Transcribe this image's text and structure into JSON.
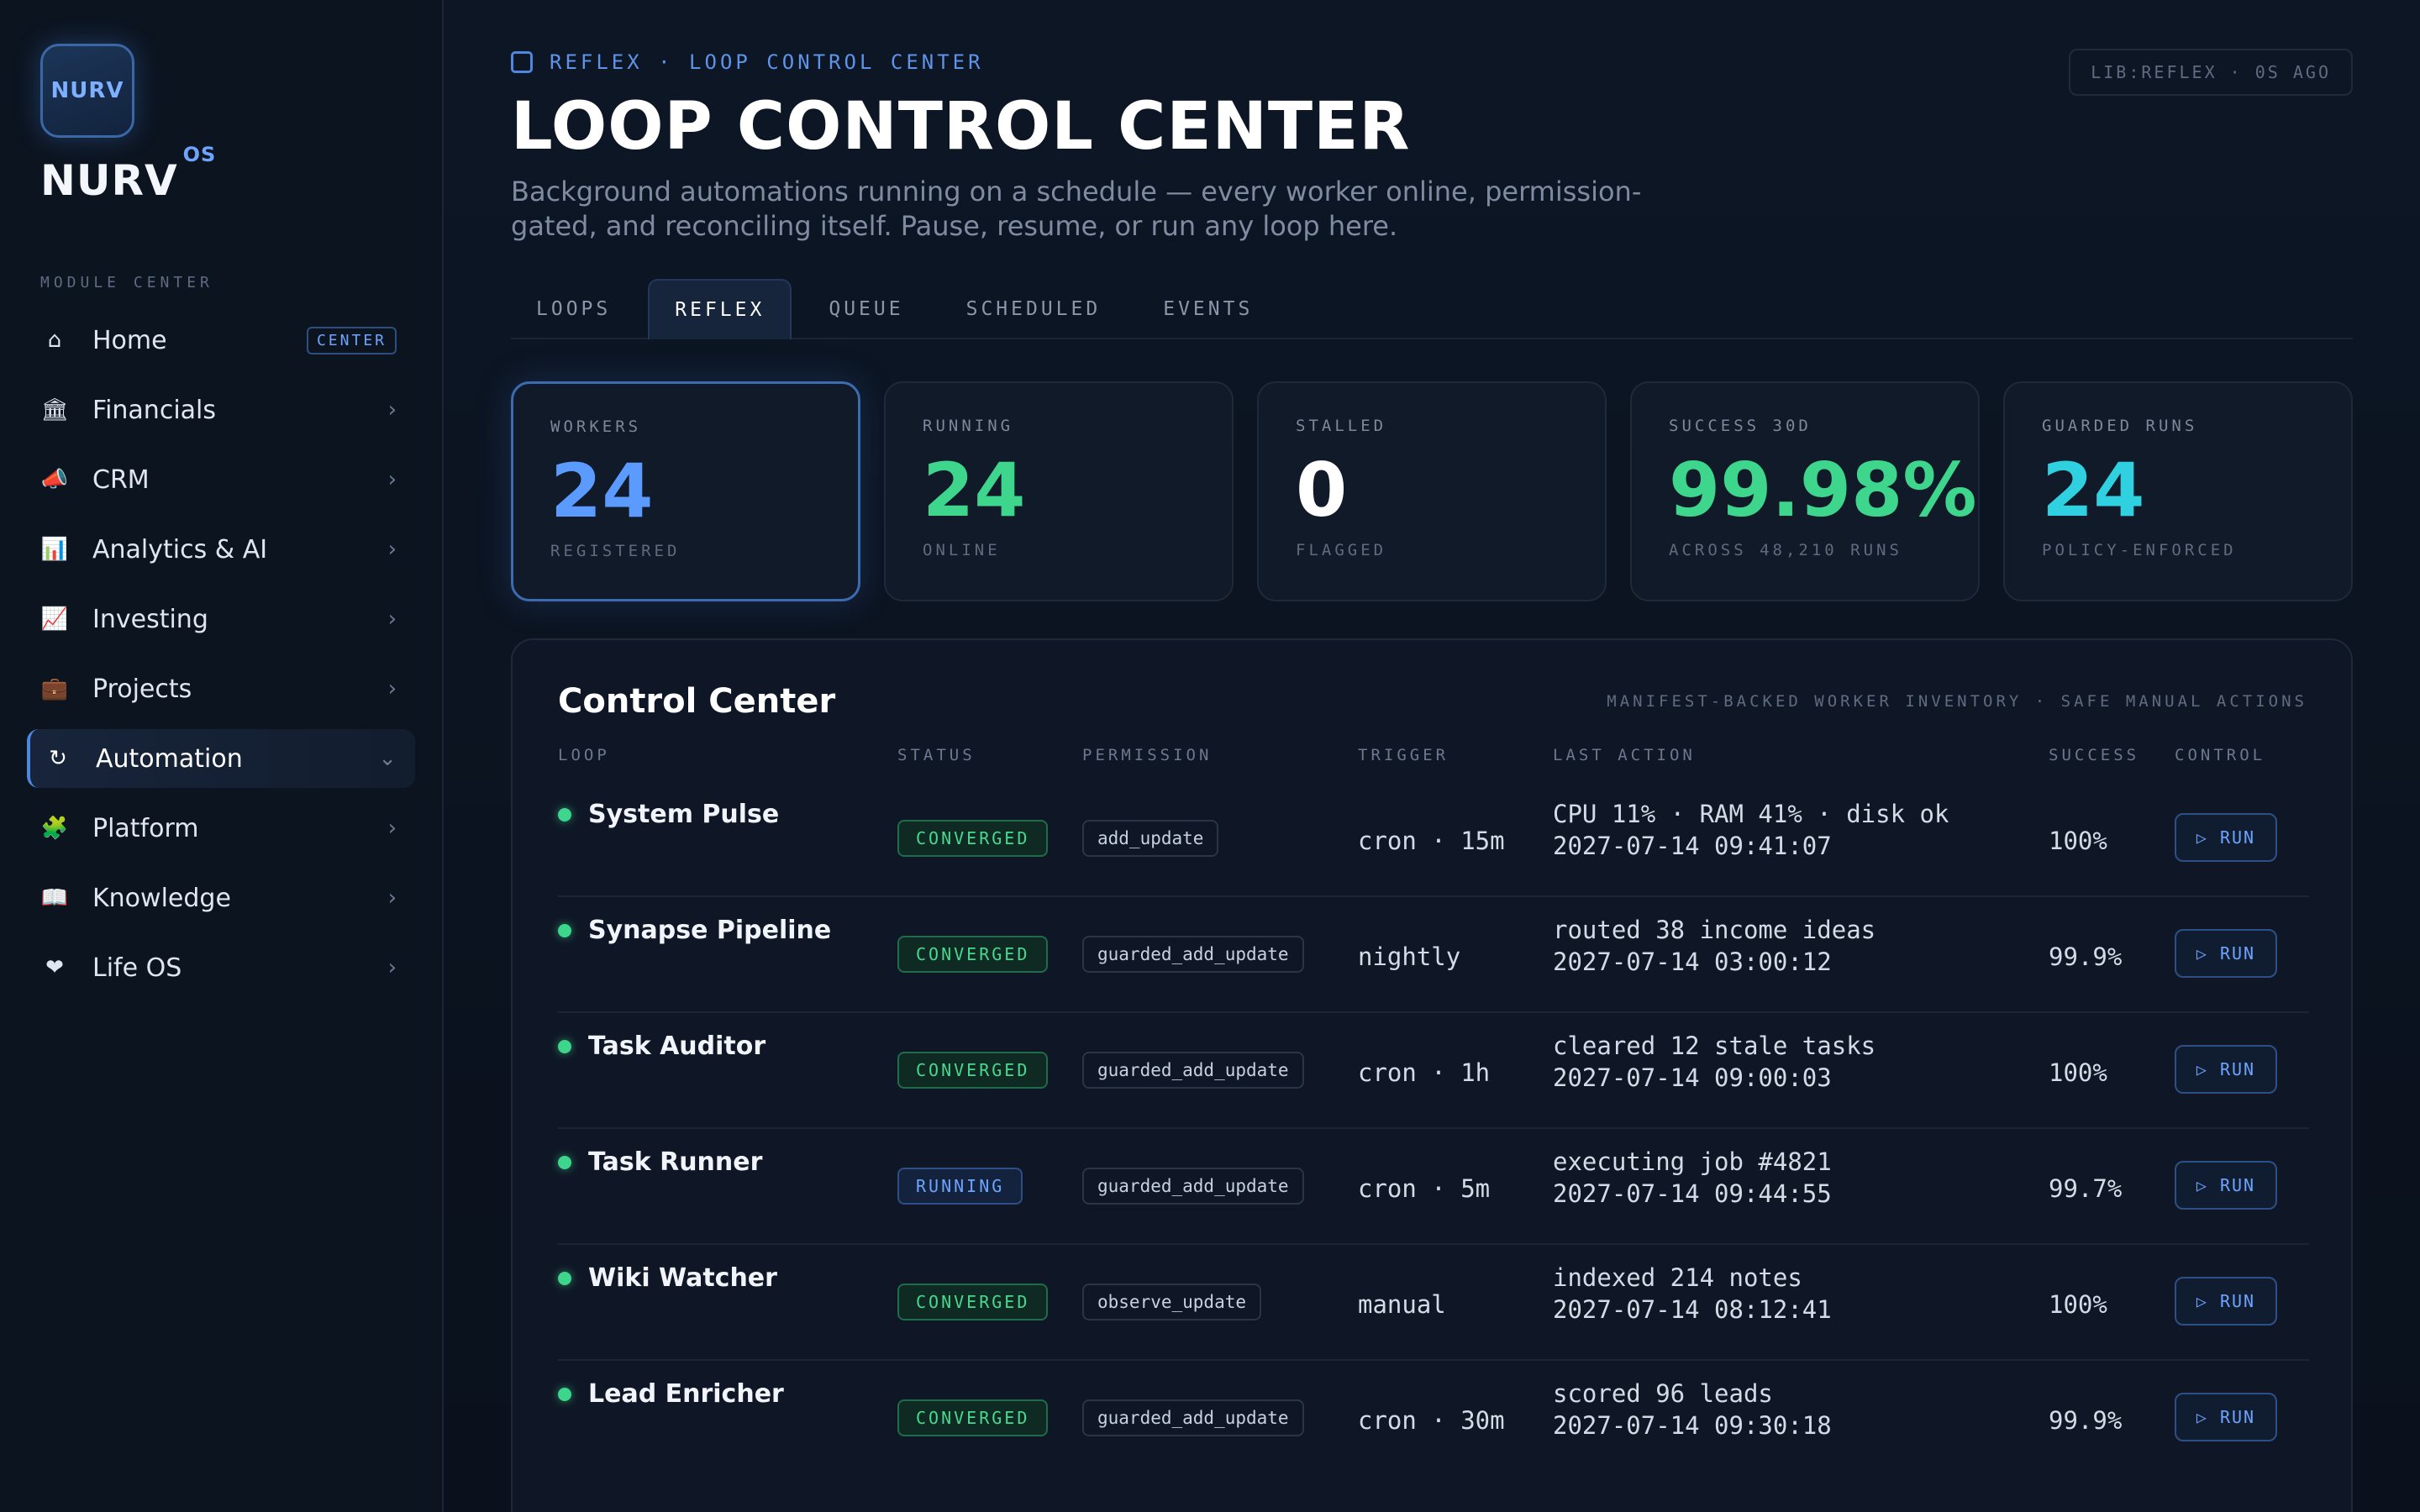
{
  "brand": {
    "logo_text": "NURV",
    "name": "NURV",
    "superscript": "OS"
  },
  "sidebar": {
    "section_label": "MODULE CENTER",
    "items": [
      {
        "label": "Home",
        "icon": "home-icon",
        "glyph": "⌂",
        "badge": "CENTER"
      },
      {
        "label": "Financials",
        "icon": "bank-icon",
        "glyph": "🏛",
        "chevron": "›"
      },
      {
        "label": "CRM",
        "icon": "megaphone-icon",
        "glyph": "📣",
        "chevron": "›"
      },
      {
        "label": "Analytics & AI",
        "icon": "bar-chart-icon",
        "glyph": "📊",
        "chevron": "›"
      },
      {
        "label": "Investing",
        "icon": "trend-chart-icon",
        "glyph": "📈",
        "chevron": "›"
      },
      {
        "label": "Projects",
        "icon": "briefcase-icon",
        "glyph": "💼",
        "chevron": "›"
      },
      {
        "label": "Automation",
        "icon": "refresh-icon",
        "glyph": "↻",
        "chevron": "⌄",
        "active": true
      },
      {
        "label": "Platform",
        "icon": "puzzle-icon",
        "glyph": "🧩",
        "chevron": "›"
      },
      {
        "label": "Knowledge",
        "icon": "book-icon",
        "glyph": "📖",
        "chevron": "›"
      },
      {
        "label": "Life OS",
        "icon": "heart-icon",
        "glyph": "❤",
        "chevron": "›"
      }
    ]
  },
  "header": {
    "breadcrumb": "REFLEX · LOOP CONTROL CENTER",
    "lib_status": "LIB:REFLEX · 0S AGO",
    "title": "LOOP CONTROL CENTER",
    "subtitle": "Background automations running on a schedule — every worker online, permission-gated, and reconciling itself. Pause, resume, or run any loop here."
  },
  "tabs": [
    {
      "label": "LOOPS"
    },
    {
      "label": "REFLEX",
      "active": true
    },
    {
      "label": "QUEUE"
    },
    {
      "label": "SCHEDULED"
    },
    {
      "label": "EVENTS"
    }
  ],
  "stats": [
    {
      "label": "WORKERS",
      "value": "24",
      "sub": "REGISTERED",
      "color": "#5b9bff"
    },
    {
      "label": "RUNNING",
      "value": "24",
      "sub": "ONLINE",
      "color": "#3dd68c"
    },
    {
      "label": "STALLED",
      "value": "0",
      "sub": "FLAGGED",
      "color": "#ffffff"
    },
    {
      "label": "SUCCESS 30D",
      "value": "99.98%",
      "sub": "ACROSS 48,210 RUNS",
      "color": "#3dd68c"
    },
    {
      "label": "GUARDED RUNS",
      "value": "24",
      "sub": "POLICY-ENFORCED",
      "color": "#2fd0e0"
    }
  ],
  "control_center": {
    "title": "Control Center",
    "meta": "MANIFEST-BACKED WORKER INVENTORY · SAFE MANUAL ACTIONS",
    "columns": {
      "loop": "LOOP",
      "status": "STATUS",
      "permission": "PERMISSION",
      "trigger": "TRIGGER",
      "last_action": "LAST ACTION",
      "success": "SUCCESS",
      "control": "CONTROL"
    },
    "rows": [
      {
        "name": "System Pulse",
        "status": "CONVERGED",
        "permission": "add_update",
        "trigger": "cron · 15m",
        "action": "CPU 11% · RAM 41% · disk ok",
        "time": "2027-07-14 09:41:07",
        "success": "100%",
        "run": "▷ RUN"
      },
      {
        "name": "Synapse Pipeline",
        "status": "CONVERGED",
        "permission": "guarded_add_update",
        "trigger": "nightly",
        "action": "routed 38 income ideas",
        "time": "2027-07-14 03:00:12",
        "success": "99.9%",
        "run": "▷ RUN"
      },
      {
        "name": "Task Auditor",
        "status": "CONVERGED",
        "permission": "guarded_add_update",
        "trigger": "cron · 1h",
        "action": "cleared 12 stale tasks",
        "time": "2027-07-14 09:00:03",
        "success": "100%",
        "run": "▷ RUN"
      },
      {
        "name": "Task Runner",
        "status": "RUNNING",
        "permission": "guarded_add_update",
        "trigger": "cron · 5m",
        "action": "executing job #4821",
        "time": "2027-07-14 09:44:55",
        "success": "99.7%",
        "run": "▷ RUN"
      },
      {
        "name": "Wiki Watcher",
        "status": "CONVERGED",
        "permission": "observe_update",
        "trigger": "manual",
        "action": "indexed 214 notes",
        "time": "2027-07-14 08:12:41",
        "success": "100%",
        "run": "▷ RUN"
      },
      {
        "name": "Lead Enricher",
        "status": "CONVERGED",
        "permission": "guarded_add_update",
        "trigger": "cron · 30m",
        "action": "scored 96 leads",
        "time": "2027-07-14 09:30:18",
        "success": "99.9%",
        "run": "▷ RUN"
      }
    ]
  }
}
